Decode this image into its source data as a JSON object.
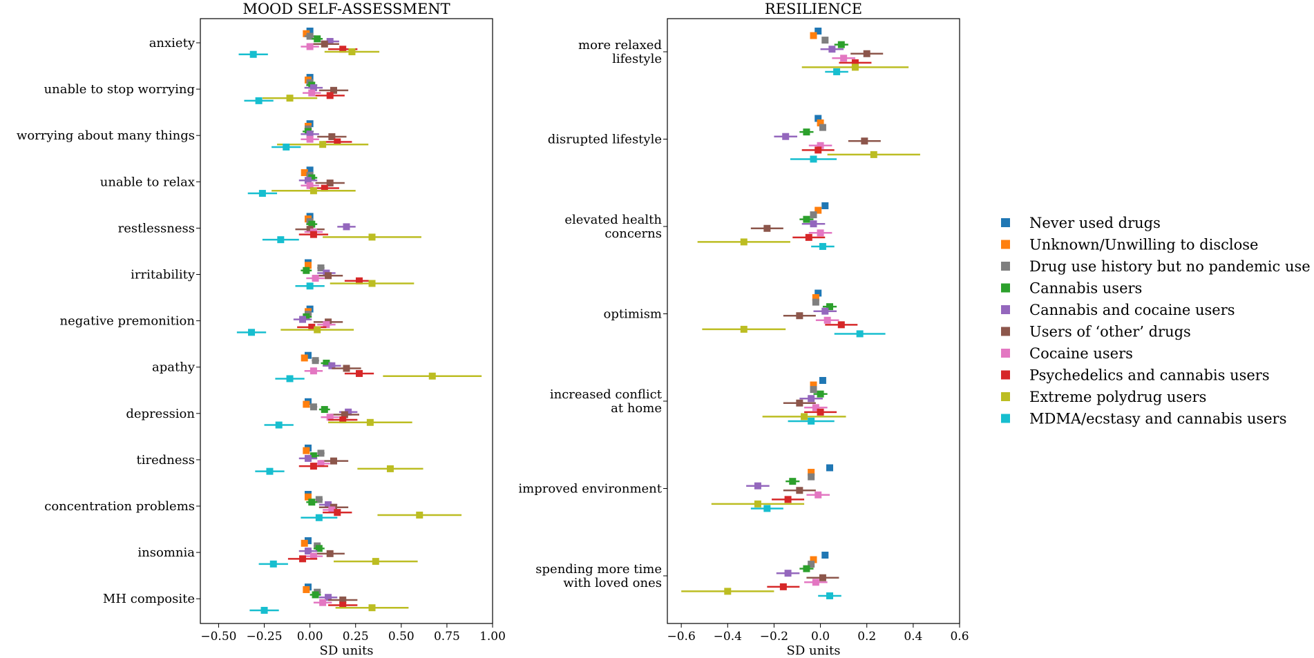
{
  "chart_data": [
    {
      "type": "errorbar-dot",
      "title": "MOOD SELF-ASSESSMENT",
      "xlabel": "SD units",
      "xlim": [
        -0.6,
        1.0
      ],
      "xticks": [
        -0.5,
        -0.25,
        0.0,
        0.25,
        0.5,
        0.75,
        1.0
      ],
      "xtick_labels": [
        "−0.50",
        "−0.25",
        "0.00",
        "0.25",
        "0.50",
        "0.75",
        "1.00"
      ],
      "categories": [
        "anxiety",
        "unable to stop worrying",
        "worrying about many things",
        "unable to relax",
        "restlessness",
        "irritability",
        "negative premonition",
        "apathy",
        "depression",
        "tiredness",
        "concentration problems",
        "insomnia",
        "MH composite"
      ],
      "series": [
        {
          "name": "Never used drugs",
          "values": [
            0.0,
            0.0,
            0.0,
            0.0,
            0.0,
            -0.01,
            0.0,
            -0.01,
            -0.01,
            -0.01,
            -0.01,
            -0.01,
            -0.01
          ],
          "err": [
            0.0,
            0.0,
            0.0,
            0.0,
            0.0,
            0.0,
            0.0,
            0.0,
            0.0,
            0.0,
            0.0,
            0.0,
            0.0
          ]
        },
        {
          "name": "Unknown/Unwilling to disclose",
          "values": [
            -0.02,
            -0.01,
            -0.01,
            -0.03,
            -0.01,
            -0.01,
            -0.01,
            -0.03,
            -0.02,
            -0.02,
            -0.01,
            -0.03,
            -0.02
          ],
          "err": [
            0.0,
            0.0,
            0.0,
            0.0,
            0.0,
            0.0,
            0.0,
            0.0,
            0.0,
            0.0,
            0.0,
            0.0,
            0.0
          ]
        },
        {
          "name": "Drug use history but no pandemic use",
          "values": [
            0.0,
            0.0,
            -0.01,
            0.0,
            0.0,
            0.06,
            -0.01,
            0.03,
            0.02,
            0.06,
            0.05,
            0.04,
            0.04
          ],
          "err": [
            0.03,
            0.02,
            0.02,
            0.02,
            0.02,
            0.02,
            0.02,
            0.02,
            0.02,
            0.02,
            0.02,
            0.02,
            0.02
          ]
        },
        {
          "name": "Cannabis users",
          "values": [
            0.04,
            0.01,
            -0.01,
            0.01,
            0.01,
            -0.02,
            -0.02,
            0.09,
            0.08,
            0.02,
            0.01,
            0.05,
            0.03
          ],
          "err": [
            0.03,
            0.03,
            0.03,
            0.03,
            0.03,
            0.03,
            0.03,
            0.03,
            0.03,
            0.03,
            0.03,
            0.03,
            0.03
          ]
        },
        {
          "name": "Cannabis and cocaine users",
          "values": [
            0.11,
            0.02,
            0.0,
            -0.01,
            0.2,
            0.09,
            -0.04,
            0.12,
            0.21,
            -0.01,
            0.1,
            -0.01,
            0.1
          ],
          "err": [
            0.05,
            0.05,
            0.05,
            0.05,
            0.05,
            0.05,
            0.05,
            0.05,
            0.05,
            0.05,
            0.05,
            0.05,
            0.05
          ]
        },
        {
          "name": "Users of ‘other’ drugs",
          "values": [
            0.08,
            0.13,
            0.12,
            0.11,
            0.0,
            0.1,
            0.1,
            0.2,
            0.19,
            0.13,
            0.13,
            0.11,
            0.18
          ],
          "err": [
            0.08,
            0.08,
            0.08,
            0.08,
            0.08,
            0.08,
            0.08,
            0.08,
            0.08,
            0.08,
            0.08,
            0.08,
            0.08
          ]
        },
        {
          "name": "Cocaine users",
          "values": [
            0.0,
            0.01,
            0.0,
            0.0,
            0.02,
            0.03,
            0.09,
            0.02,
            0.11,
            0.06,
            0.12,
            0.02,
            0.07
          ],
          "err": [
            0.05,
            0.05,
            0.05,
            0.05,
            0.05,
            0.05,
            0.05,
            0.05,
            0.05,
            0.05,
            0.05,
            0.05,
            0.05
          ]
        },
        {
          "name": "Psychedelics and cannabis users",
          "values": [
            0.18,
            0.11,
            0.15,
            0.08,
            0.02,
            0.27,
            0.01,
            0.27,
            0.18,
            0.02,
            0.15,
            -0.04,
            0.18
          ],
          "err": [
            0.08,
            0.08,
            0.08,
            0.08,
            0.08,
            0.08,
            0.08,
            0.08,
            0.08,
            0.08,
            0.08,
            0.08,
            0.08
          ]
        },
        {
          "name": "Extreme polydrug users",
          "values": [
            0.23,
            -0.11,
            0.07,
            0.02,
            0.34,
            0.34,
            0.04,
            0.67,
            0.33,
            0.44,
            0.6,
            0.36,
            0.34
          ],
          "err": [
            0.15,
            0.15,
            0.25,
            0.23,
            0.27,
            0.23,
            0.2,
            0.27,
            0.23,
            0.18,
            0.23,
            0.23,
            0.2
          ]
        },
        {
          "name": "MDMA/ecstasy and cannabis users",
          "values": [
            -0.31,
            -0.28,
            -0.13,
            -0.26,
            -0.16,
            0.0,
            -0.32,
            -0.11,
            -0.17,
            -0.22,
            0.05,
            -0.2,
            -0.25
          ],
          "err": [
            0.08,
            0.08,
            0.08,
            0.08,
            0.1,
            0.08,
            0.08,
            0.08,
            0.08,
            0.08,
            0.1,
            0.08,
            0.08
          ]
        }
      ]
    },
    {
      "type": "errorbar-dot",
      "title": "RESILIENCE",
      "xlabel": "SD units",
      "xlim": [
        -0.66,
        0.6
      ],
      "xticks": [
        -0.6,
        -0.4,
        -0.2,
        0.0,
        0.2,
        0.4,
        0.6
      ],
      "xtick_labels": [
        "−0.6",
        "−0.4",
        "−0.2",
        "0.0",
        "0.2",
        "0.4",
        "0.6"
      ],
      "categories": [
        "more relaxed\nlifestyle",
        "disrupted lifestyle",
        "elevated health\nconcerns",
        "optimism",
        "increased conflict\nat home",
        "improved environment",
        "spending more time\nwith loved ones"
      ],
      "series": [
        {
          "name": "Never used drugs",
          "values": [
            -0.01,
            -0.01,
            0.02,
            -0.01,
            0.01,
            0.04,
            0.02
          ],
          "err": [
            0.0,
            0.0,
            0.0,
            0.0,
            0.0,
            0.0,
            0.0
          ]
        },
        {
          "name": "Unknown/Unwilling to disclose",
          "values": [
            -0.03,
            0.0,
            -0.01,
            -0.02,
            -0.03,
            -0.04,
            -0.03
          ],
          "err": [
            0.0,
            0.0,
            0.0,
            0.0,
            0.0,
            0.0,
            0.0
          ]
        },
        {
          "name": "Drug use history but no pandemic use",
          "values": [
            0.02,
            0.01,
            -0.03,
            -0.02,
            -0.03,
            -0.04,
            -0.04
          ],
          "err": [
            0.01,
            0.01,
            0.01,
            0.01,
            0.01,
            0.01,
            0.01
          ]
        },
        {
          "name": "Cannabis users",
          "values": [
            0.09,
            -0.06,
            -0.06,
            0.04,
            0.0,
            -0.12,
            -0.06
          ],
          "err": [
            0.03,
            0.03,
            0.03,
            0.03,
            0.03,
            0.03,
            0.03
          ]
        },
        {
          "name": "Cannabis and cocaine users",
          "values": [
            0.05,
            -0.15,
            -0.03,
            0.02,
            -0.04,
            -0.27,
            -0.14
          ],
          "err": [
            0.05,
            0.05,
            0.05,
            0.05,
            0.05,
            0.05,
            0.05
          ]
        },
        {
          "name": "Users of ‘other’ drugs",
          "values": [
            0.2,
            0.19,
            -0.23,
            -0.09,
            -0.09,
            -0.09,
            0.01
          ],
          "err": [
            0.07,
            0.07,
            0.07,
            0.07,
            0.07,
            0.07,
            0.07
          ]
        },
        {
          "name": "Cocaine users",
          "values": [
            0.1,
            0.0,
            0.0,
            0.03,
            -0.02,
            -0.01,
            -0.02
          ],
          "err": [
            0.05,
            0.05,
            0.05,
            0.05,
            0.05,
            0.05,
            0.05
          ]
        },
        {
          "name": "Psychedelics and cannabis users",
          "values": [
            0.15,
            -0.01,
            -0.05,
            0.09,
            0.0,
            -0.14,
            -0.16
          ],
          "err": [
            0.07,
            0.07,
            0.07,
            0.07,
            0.07,
            0.07,
            0.07
          ]
        },
        {
          "name": "Extreme polydrug users",
          "values": [
            0.15,
            0.23,
            -0.33,
            -0.33,
            -0.07,
            -0.27,
            -0.4
          ],
          "err": [
            0.23,
            0.2,
            0.2,
            0.18,
            0.18,
            0.2,
            0.2
          ]
        },
        {
          "name": "MDMA/ecstasy and cannabis users",
          "values": [
            0.07,
            -0.03,
            0.01,
            0.17,
            -0.04,
            -0.23,
            0.04
          ],
          "err": [
            0.05,
            0.1,
            0.05,
            0.11,
            0.1,
            0.07,
            0.05
          ]
        }
      ]
    }
  ],
  "legend": {
    "items": [
      "Never used drugs",
      "Unknown/Unwilling to disclose",
      "Drug use history but no pandemic use",
      "Cannabis users",
      "Cannabis and cocaine users",
      "Users of ‘other’ drugs",
      "Cocaine users",
      "Psychedelics and cannabis users",
      "Extreme polydrug users",
      "MDMA/ecstasy and cannabis users"
    ]
  },
  "colors": [
    "#1f77b4",
    "#ff7f0e",
    "#7f7f7f",
    "#2ca02c",
    "#9467bd",
    "#8c564b",
    "#e377c2",
    "#d62728",
    "#bcbd22",
    "#17becf"
  ]
}
